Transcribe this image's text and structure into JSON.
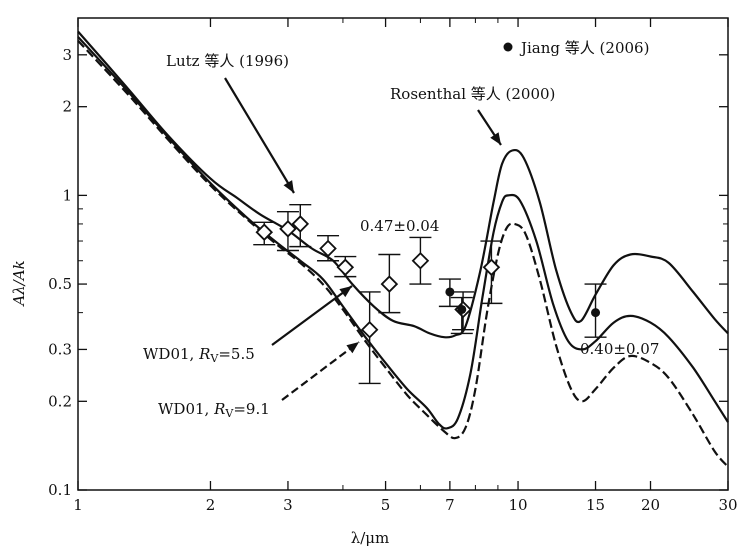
{
  "chart_data": {
    "type": "line",
    "xlabel": "λ/μm",
    "ylabel": "Aλ/Ak",
    "x_scale": "log",
    "y_scale": "log",
    "xlim": [
      1,
      30
    ],
    "ylim": [
      0.1,
      4
    ],
    "x_ticks": [
      1,
      2,
      3,
      5,
      7,
      10,
      15,
      20,
      30
    ],
    "x_tick_labels": [
      "1",
      "2",
      "3",
      "5",
      "7",
      "10",
      "15",
      "20",
      "30"
    ],
    "y_ticks": [
      0.1,
      0.2,
      0.3,
      0.5,
      1,
      2,
      3
    ],
    "y_tick_labels": [
      "0.1",
      "0.2",
      "0.3",
      "0.5",
      "1",
      "2",
      "3"
    ],
    "grid": false,
    "curves": [
      {
        "id": "rosenthal",
        "style": "solid",
        "label": "Rosenthal 等人 (2000)",
        "points": [
          [
            1,
            3.6
          ],
          [
            1.3,
            2.3
          ],
          [
            1.6,
            1.6
          ],
          [
            2,
            1.14
          ],
          [
            2.3,
            0.98
          ],
          [
            2.6,
            0.86
          ],
          [
            3,
            0.76
          ],
          [
            3.4,
            0.66
          ],
          [
            3.8,
            0.6
          ],
          [
            4.2,
            0.5
          ],
          [
            4.7,
            0.42
          ],
          [
            5.2,
            0.375
          ],
          [
            5.8,
            0.36
          ],
          [
            6.3,
            0.34
          ],
          [
            6.8,
            0.33
          ],
          [
            7.2,
            0.335
          ],
          [
            7.6,
            0.36
          ],
          [
            8.2,
            0.55
          ],
          [
            8.8,
            0.95
          ],
          [
            9.2,
            1.28
          ],
          [
            9.7,
            1.42
          ],
          [
            10.3,
            1.34
          ],
          [
            11.2,
            0.95
          ],
          [
            12.2,
            0.56
          ],
          [
            13.2,
            0.4
          ],
          [
            13.9,
            0.375
          ],
          [
            15,
            0.46
          ],
          [
            16.5,
            0.58
          ],
          [
            18,
            0.63
          ],
          [
            20,
            0.62
          ],
          [
            22,
            0.59
          ],
          [
            25,
            0.47
          ],
          [
            28,
            0.38
          ],
          [
            30,
            0.34
          ]
        ]
      },
      {
        "id": "wd01-rv5.5",
        "style": "solid",
        "label": "WD01, Rv=5.5",
        "points": [
          [
            1,
            3.45
          ],
          [
            1.3,
            2.25
          ],
          [
            1.6,
            1.58
          ],
          [
            2,
            1.1
          ],
          [
            2.4,
            0.85
          ],
          [
            2.8,
            0.7
          ],
          [
            3.2,
            0.6
          ],
          [
            3.6,
            0.52
          ],
          [
            4,
            0.42
          ],
          [
            4.5,
            0.33
          ],
          [
            5,
            0.27
          ],
          [
            5.6,
            0.22
          ],
          [
            6.2,
            0.19
          ],
          [
            6.6,
            0.168
          ],
          [
            6.9,
            0.162
          ],
          [
            7.3,
            0.175
          ],
          [
            7.8,
            0.25
          ],
          [
            8.3,
            0.45
          ],
          [
            8.8,
            0.75
          ],
          [
            9.2,
            0.95
          ],
          [
            9.5,
            1.0
          ],
          [
            10.1,
            0.96
          ],
          [
            11,
            0.7
          ],
          [
            12,
            0.43
          ],
          [
            13,
            0.32
          ],
          [
            14,
            0.3
          ],
          [
            15,
            0.32
          ],
          [
            16.5,
            0.37
          ],
          [
            18,
            0.39
          ],
          [
            20,
            0.37
          ],
          [
            22,
            0.33
          ],
          [
            25,
            0.26
          ],
          [
            28,
            0.2
          ],
          [
            30,
            0.17
          ]
        ]
      },
      {
        "id": "wd01-rv9.1",
        "style": "dashed",
        "label": "WD01, Rv=9.1",
        "points": [
          [
            1,
            3.35
          ],
          [
            1.3,
            2.2
          ],
          [
            1.6,
            1.55
          ],
          [
            2,
            1.08
          ],
          [
            2.4,
            0.84
          ],
          [
            2.8,
            0.69
          ],
          [
            3.2,
            0.59
          ],
          [
            3.6,
            0.5
          ],
          [
            4,
            0.41
          ],
          [
            4.5,
            0.32
          ],
          [
            5,
            0.26
          ],
          [
            5.6,
            0.21
          ],
          [
            6.2,
            0.18
          ],
          [
            6.8,
            0.158
          ],
          [
            7.2,
            0.15
          ],
          [
            7.6,
            0.163
          ],
          [
            8,
            0.22
          ],
          [
            8.5,
            0.4
          ],
          [
            9,
            0.63
          ],
          [
            9.4,
            0.77
          ],
          [
            9.8,
            0.8
          ],
          [
            10.4,
            0.74
          ],
          [
            11.2,
            0.52
          ],
          [
            12.2,
            0.31
          ],
          [
            13.2,
            0.22
          ],
          [
            14,
            0.2
          ],
          [
            15,
            0.22
          ],
          [
            16.5,
            0.26
          ],
          [
            18,
            0.285
          ],
          [
            20,
            0.27
          ],
          [
            22,
            0.24
          ],
          [
            25,
            0.18
          ],
          [
            28,
            0.135
          ],
          [
            30,
            0.12
          ]
        ]
      }
    ],
    "lutz_points": [
      {
        "x": 2.65,
        "y": 0.75,
        "lo": 0.68,
        "hi": 0.81
      },
      {
        "x": 3.0,
        "y": 0.77,
        "lo": 0.65,
        "hi": 0.88
      },
      {
        "x": 3.2,
        "y": 0.8,
        "lo": 0.67,
        "hi": 0.93
      },
      {
        "x": 3.7,
        "y": 0.66,
        "lo": 0.6,
        "hi": 0.73
      },
      {
        "x": 4.05,
        "y": 0.57,
        "lo": 0.53,
        "hi": 0.62
      },
      {
        "x": 4.6,
        "y": 0.35,
        "lo": 0.23,
        "hi": 0.47
      },
      {
        "x": 5.1,
        "y": 0.5,
        "lo": 0.4,
        "hi": 0.63
      },
      {
        "x": 6.0,
        "y": 0.6,
        "lo": 0.5,
        "hi": 0.72
      },
      {
        "x": 7.5,
        "y": 0.41,
        "lo": 0.35,
        "hi": 0.47
      },
      {
        "x": 8.7,
        "y": 0.57,
        "lo": 0.43,
        "hi": 0.7
      }
    ],
    "jiang_points": [
      {
        "x": 7.0,
        "y": 0.47,
        "lo": 0.42,
        "hi": 0.52
      },
      {
        "x": 7.45,
        "y": 0.41,
        "lo": 0.34,
        "hi": 0.45
      },
      {
        "x": 15.0,
        "y": 0.4,
        "lo": 0.33,
        "hi": 0.5
      }
    ],
    "annotations": {
      "lutz": "Lutz 等人 (1996)",
      "rosenthal": "Rosenthal 等人 (2000)",
      "jiang_legend": "Jiang 等人 (2006)",
      "wd55_prefix": "WD01, ",
      "wd55_r": "R",
      "wd55_sub": "V",
      "wd55_val": "=5.5",
      "wd91_prefix": "WD01, ",
      "wd91_r": "R",
      "wd91_sub": "V",
      "wd91_val": "=9.1",
      "val1": "0.47±0.04",
      "val2": "0.40±0.07"
    }
  }
}
